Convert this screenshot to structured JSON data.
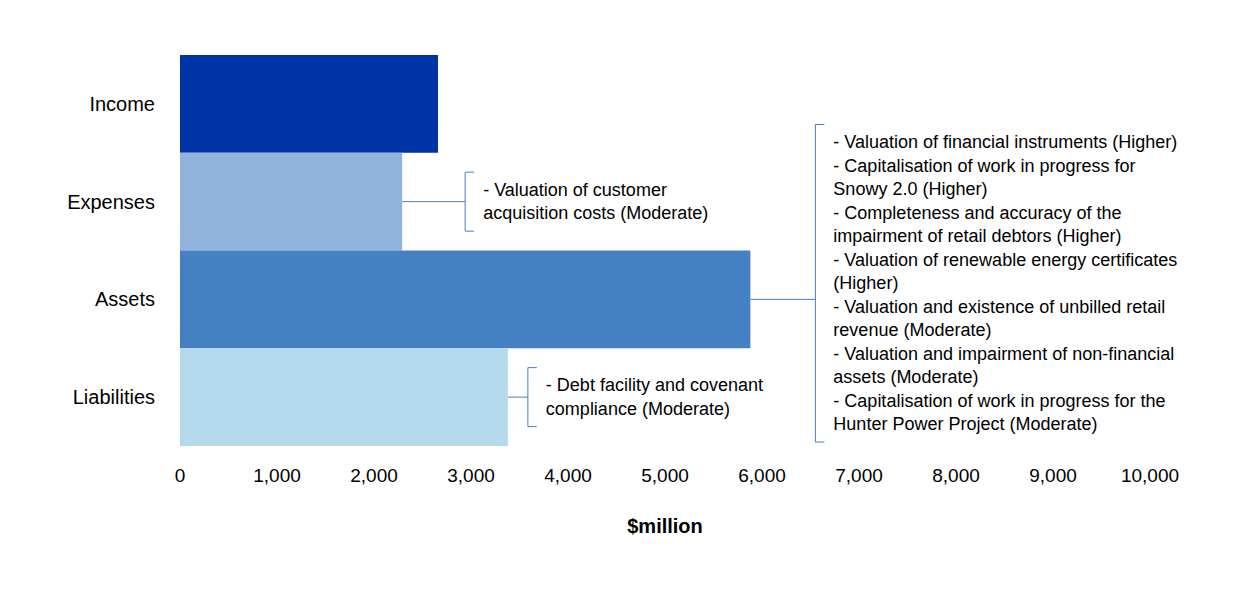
{
  "chart_data": {
    "type": "bar",
    "orientation": "horizontal",
    "categories": [
      "Income",
      "Expenses",
      "Assets",
      "Liabilities"
    ],
    "values": [
      2660,
      2290,
      5880,
      3380
    ],
    "colors": [
      "#0033a6",
      "#8fb3db",
      "#4580c2",
      "#b4d9ec"
    ],
    "xlabel": "$million",
    "xlim": [
      0,
      10000
    ],
    "xticks": [
      0,
      {
        "value": 1000,
        "label": "1,000"
      },
      {
        "value": 2000,
        "label": "2,000"
      },
      {
        "value": 3000,
        "label": "3,000"
      },
      {
        "value": 4000,
        "label": "4,000"
      },
      {
        "value": 5000,
        "label": "5,000"
      },
      {
        "value": 6000,
        "label": "6,000"
      },
      {
        "value": 7000,
        "label": "7,000"
      },
      {
        "value": 8000,
        "label": "8,000"
      },
      {
        "value": 9000,
        "label": "9,000"
      },
      {
        "value": 10000,
        "label": "10,000"
      }
    ],
    "grid": false,
    "annotations": [
      {
        "category": "Expenses",
        "text": [
          "- Valuation of customer acquisition costs (Moderate)"
        ]
      },
      {
        "category": "Assets",
        "text": [
          "- Valuation of financial instruments (Higher)",
          "- Capitalisation of work in progress for Snowy 2.0 (Higher)",
          "- Completeness and accuracy of the impairment of retail debtors (Higher)",
          "- Valuation of renewable energy certificates (Higher)",
          "- Valuation and existence of unbilled retail revenue (Moderate)",
          "- Valuation and impairment of non-financial assets (Moderate)",
          "- Capitalisation of work in progress for the Hunter Power Project (Moderate)"
        ]
      },
      {
        "category": "Liabilities",
        "text": [
          "- Debt facility and covenant compliance (Moderate)"
        ]
      }
    ]
  }
}
